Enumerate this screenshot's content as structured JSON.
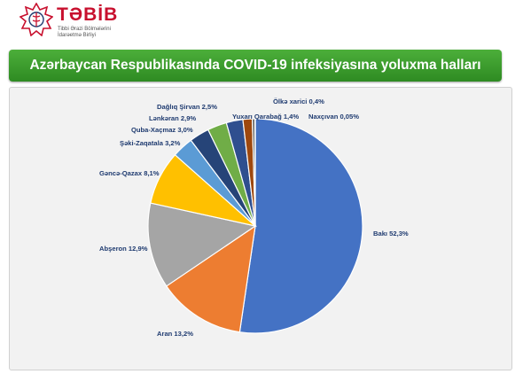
{
  "logo": {
    "name": "TƏBİB",
    "subtitle_line1": "Tibbi Ərazi Bölmələrini",
    "subtitle_line2": "İdarəetmə Birliyi",
    "colors": {
      "red": "#c8102e",
      "blue": "#1f3b70"
    }
  },
  "chart_data": {
    "type": "pie",
    "title": "Azərbaycan Respublikasında COVID-19 infeksiyasına yoluxma halları",
    "start_angle_deg": 0,
    "direction": "clockwise",
    "slices": [
      {
        "name": "Bakı",
        "value": 52.3,
        "label": "Bakı  52,3%",
        "color": "#4472c4"
      },
      {
        "name": "Aran",
        "value": 13.2,
        "label": "Aran 13,2%",
        "color": "#ed7d31"
      },
      {
        "name": "Abşeron",
        "value": 12.9,
        "label": "Abşeron 12,9%",
        "color": "#a5a5a5"
      },
      {
        "name": "Gəncə-Qazax",
        "value": 8.1,
        "label": "Gəncə-Qazax 8,1%",
        "color": "#ffc000"
      },
      {
        "name": "Şəki-Zaqatala",
        "value": 3.2,
        "label": "Şəki-Zaqatala 3,2%",
        "color": "#5b9bd5"
      },
      {
        "name": "Quba-Xaçmaz",
        "value": 3.0,
        "label": "Quba-Xaçmaz 3,0%",
        "color": "#264478"
      },
      {
        "name": "Lənkəran",
        "value": 2.9,
        "label": "Lənkəran 2,9%",
        "color": "#70ad47"
      },
      {
        "name": "Dağlıq Şirvan",
        "value": 2.5,
        "label": "Dağlıq Şirvan 2,5%",
        "color": "#2f4f8f"
      },
      {
        "name": "Yuxarı Qarabağ",
        "value": 1.4,
        "label": "Yuxarı Qarabağ 1,4%",
        "color": "#9e480e"
      },
      {
        "name": "Ölkə xarici",
        "value": 0.4,
        "label": "Ölkə xarici 0,4%",
        "color": "#636363"
      },
      {
        "name": "Naxçıvan",
        "value": 0.05,
        "label": "Naxçıvan 0,05%",
        "color": "#997300"
      }
    ]
  }
}
